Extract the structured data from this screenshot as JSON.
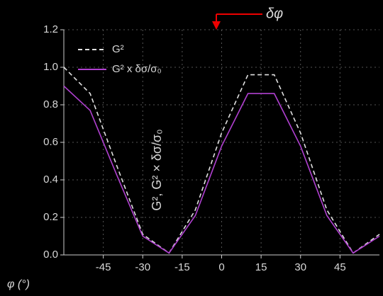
{
  "chart_data": {
    "type": "line",
    "annotation": "δφ",
    "xlabel": "φ (°)",
    "ylabel": "G², G² × δσ/σ₀",
    "x": [
      -60,
      -50,
      -40,
      -30,
      -20,
      -10,
      0,
      10,
      20,
      30,
      40,
      50,
      60
    ],
    "series": [
      {
        "name": "G²",
        "color": "#e0e0e0",
        "dashed": true,
        "values": [
          1.0,
          0.86,
          0.48,
          0.11,
          0.01,
          0.24,
          0.65,
          0.96,
          0.96,
          0.65,
          0.24,
          0.01,
          0.11
        ]
      },
      {
        "name": "G² x δσ/σ₀",
        "color": "#b040d0",
        "dashed": false,
        "values": [
          0.9,
          0.77,
          0.43,
          0.1,
          0.01,
          0.21,
          0.58,
          0.86,
          0.86,
          0.58,
          0.21,
          0.01,
          0.1
        ]
      }
    ],
    "xlim": [
      -60,
      60
    ],
    "xticks": [
      -45,
      -30,
      -15,
      0,
      15,
      30,
      45
    ],
    "ylim": [
      0,
      1.2
    ],
    "yticks": [
      {
        "value": 0,
        "label": "0.0"
      },
      0.2,
      0.4,
      0.6,
      0.8,
      {
        "value": 1,
        "label": "1.0"
      },
      1.2
    ],
    "grid": true
  }
}
